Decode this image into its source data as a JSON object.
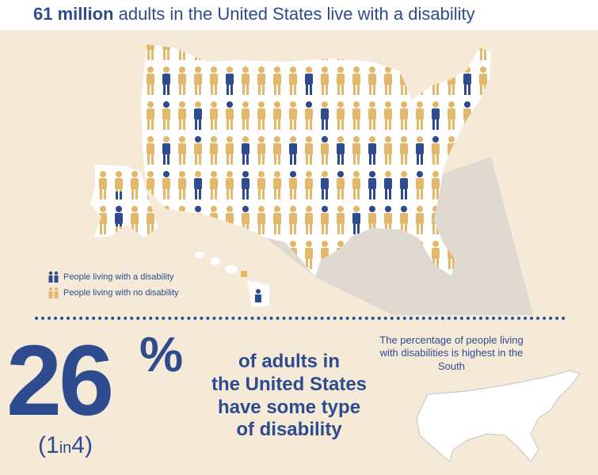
{
  "header": {
    "title_bold": "61 million",
    "title_rest": " adults in the United States live with a disability"
  },
  "legend": {
    "items": [
      {
        "label": "People living with a disability",
        "color": "#2e4b8f",
        "icon": "person-pair-icon"
      },
      {
        "label": "People living with no disability",
        "color": "#e3b86a",
        "icon": "person-pair-icon"
      }
    ]
  },
  "stat": {
    "number": "26",
    "percent_sign": "%",
    "ratio_open": "(1",
    "ratio_in": "in",
    "ratio_close": "4)",
    "description_line1": "of adults in",
    "description_line2": "the United States",
    "description_line3": "have some type",
    "description_line4": "of disability"
  },
  "south": {
    "note": "The percentage of people living with disabilities is highest in the South"
  },
  "colors": {
    "accent": "#2e4b8f",
    "no_disability": "#e3b86a",
    "background": "#f5ead8"
  }
}
